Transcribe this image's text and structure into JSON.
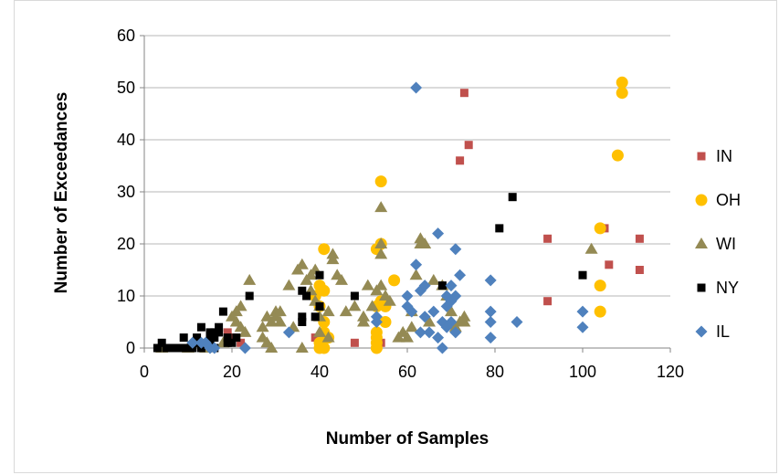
{
  "chart_data": {
    "type": "scatter",
    "title": "",
    "xlabel": "Number of Samples",
    "ylabel": "Number of Exceedances",
    "xlim": [
      0,
      120
    ],
    "ylim": [
      0,
      60
    ],
    "x_ticks": [
      0,
      20,
      40,
      60,
      80,
      100,
      120
    ],
    "y_ticks": [
      0,
      10,
      20,
      30,
      40,
      50,
      60
    ],
    "grid": "horizontal",
    "legend_position": "right",
    "series": [
      {
        "name": "IN",
        "marker": "square",
        "color": "#c0504d",
        "points": [
          [
            19,
            3
          ],
          [
            20,
            2
          ],
          [
            22,
            1
          ],
          [
            39,
            2
          ],
          [
            40,
            2
          ],
          [
            42,
            2
          ],
          [
            41,
            3
          ],
          [
            48,
            1
          ],
          [
            53,
            1
          ],
          [
            54,
            1
          ],
          [
            53,
            0
          ],
          [
            72,
            36
          ],
          [
            73,
            49
          ],
          [
            74,
            39
          ],
          [
            92,
            21
          ],
          [
            92,
            9
          ],
          [
            105,
            23
          ],
          [
            106,
            16
          ],
          [
            113,
            21
          ],
          [
            113,
            15
          ]
        ]
      },
      {
        "name": "OH",
        "marker": "circle",
        "color": "#ffc000",
        "points": [
          [
            40,
            0
          ],
          [
            40,
            1
          ],
          [
            41,
            0
          ],
          [
            39,
            10
          ],
          [
            40,
            8
          ],
          [
            40,
            12
          ],
          [
            41,
            11
          ],
          [
            41,
            19
          ],
          [
            41,
            3
          ],
          [
            42,
            2
          ],
          [
            41,
            5
          ],
          [
            53,
            19
          ],
          [
            54,
            20
          ],
          [
            54,
            32
          ],
          [
            53,
            8
          ],
          [
            54,
            9
          ],
          [
            55,
            8
          ],
          [
            53,
            3
          ],
          [
            53,
            1
          ],
          [
            53,
            0
          ],
          [
            53,
            2
          ],
          [
            55,
            5
          ],
          [
            57,
            13
          ],
          [
            104,
            23
          ],
          [
            104,
            12
          ],
          [
            104,
            7
          ],
          [
            108,
            37
          ],
          [
            109,
            49
          ],
          [
            109,
            51
          ]
        ]
      },
      {
        "name": "WI",
        "marker": "triangle",
        "color": "#948a54",
        "points": [
          [
            4,
            0
          ],
          [
            10,
            0
          ],
          [
            12,
            1
          ],
          [
            14,
            0
          ],
          [
            15,
            1
          ],
          [
            18,
            1
          ],
          [
            20,
            6
          ],
          [
            21,
            5
          ],
          [
            21,
            7
          ],
          [
            22,
            8
          ],
          [
            22,
            4
          ],
          [
            23,
            3
          ],
          [
            24,
            13
          ],
          [
            27,
            2
          ],
          [
            27,
            4
          ],
          [
            28,
            6
          ],
          [
            28,
            1
          ],
          [
            29,
            0
          ],
          [
            29,
            5
          ],
          [
            30,
            6
          ],
          [
            30,
            7
          ],
          [
            31,
            5
          ],
          [
            31,
            7
          ],
          [
            33,
            12
          ],
          [
            34,
            4
          ],
          [
            35,
            15
          ],
          [
            36,
            16
          ],
          [
            36,
            0
          ],
          [
            37,
            13
          ],
          [
            38,
            11
          ],
          [
            38,
            14
          ],
          [
            39,
            15
          ],
          [
            39,
            9
          ],
          [
            40,
            8
          ],
          [
            40,
            6
          ],
          [
            40,
            3
          ],
          [
            42,
            2
          ],
          [
            42,
            7
          ],
          [
            43,
            18
          ],
          [
            43,
            17
          ],
          [
            44,
            14
          ],
          [
            45,
            13
          ],
          [
            46,
            7
          ],
          [
            48,
            8
          ],
          [
            50,
            5
          ],
          [
            50,
            6
          ],
          [
            51,
            12
          ],
          [
            52,
            8
          ],
          [
            53,
            11
          ],
          [
            54,
            12
          ],
          [
            54,
            27
          ],
          [
            54,
            20
          ],
          [
            54,
            18
          ],
          [
            55,
            10
          ],
          [
            56,
            9
          ],
          [
            58,
            2
          ],
          [
            59,
            3
          ],
          [
            60,
            2
          ],
          [
            61,
            4
          ],
          [
            61,
            7
          ],
          [
            62,
            14
          ],
          [
            63,
            21
          ],
          [
            63,
            20
          ],
          [
            64,
            20
          ],
          [
            65,
            5
          ],
          [
            66,
            13
          ],
          [
            68,
            12
          ],
          [
            69,
            10
          ],
          [
            70,
            7
          ],
          [
            71,
            4
          ],
          [
            72,
            5
          ],
          [
            73,
            5
          ],
          [
            73,
            6
          ],
          [
            102,
            19
          ]
        ]
      },
      {
        "name": "NY",
        "marker": "square",
        "color": "#000000",
        "points": [
          [
            3,
            0
          ],
          [
            4,
            1
          ],
          [
            5,
            0
          ],
          [
            6,
            0
          ],
          [
            7,
            0
          ],
          [
            8,
            0
          ],
          [
            9,
            0
          ],
          [
            9,
            2
          ],
          [
            10,
            0
          ],
          [
            11,
            0
          ],
          [
            12,
            1
          ],
          [
            12,
            2
          ],
          [
            13,
            4
          ],
          [
            13,
            0
          ],
          [
            15,
            3
          ],
          [
            15,
            2
          ],
          [
            15,
            1
          ],
          [
            16,
            0
          ],
          [
            16,
            2
          ],
          [
            16,
            3
          ],
          [
            17,
            4
          ],
          [
            17,
            3
          ],
          [
            18,
            7
          ],
          [
            19,
            2
          ],
          [
            19,
            1
          ],
          [
            20,
            1
          ],
          [
            21,
            2
          ],
          [
            24,
            10
          ],
          [
            36,
            11
          ],
          [
            36,
            6
          ],
          [
            36,
            5
          ],
          [
            37,
            10
          ],
          [
            39,
            6
          ],
          [
            40,
            14
          ],
          [
            40,
            8
          ],
          [
            48,
            10
          ],
          [
            68,
            12
          ],
          [
            81,
            23
          ],
          [
            84,
            29
          ],
          [
            100,
            14
          ]
        ]
      },
      {
        "name": "IL",
        "marker": "diamond",
        "color": "#4f81bd",
        "points": [
          [
            11,
            1
          ],
          [
            13,
            1
          ],
          [
            14,
            1
          ],
          [
            15,
            0
          ],
          [
            16,
            0
          ],
          [
            23,
            0
          ],
          [
            33,
            3
          ],
          [
            53,
            5
          ],
          [
            53,
            6
          ],
          [
            60,
            10
          ],
          [
            60,
            8
          ],
          [
            61,
            7
          ],
          [
            62,
            16
          ],
          [
            62,
            50
          ],
          [
            63,
            11
          ],
          [
            63,
            3
          ],
          [
            64,
            12
          ],
          [
            64,
            6
          ],
          [
            65,
            3
          ],
          [
            66,
            7
          ],
          [
            67,
            2
          ],
          [
            67,
            22
          ],
          [
            68,
            0
          ],
          [
            68,
            5
          ],
          [
            69,
            4
          ],
          [
            69,
            8
          ],
          [
            69,
            10
          ],
          [
            70,
            5
          ],
          [
            70,
            9
          ],
          [
            70,
            12
          ],
          [
            71,
            19
          ],
          [
            71,
            10
          ],
          [
            71,
            3
          ],
          [
            72,
            14
          ],
          [
            79,
            13
          ],
          [
            79,
            7
          ],
          [
            79,
            5
          ],
          [
            79,
            2
          ],
          [
            85,
            5
          ],
          [
            100,
            7
          ],
          [
            100,
            4
          ]
        ]
      }
    ]
  }
}
